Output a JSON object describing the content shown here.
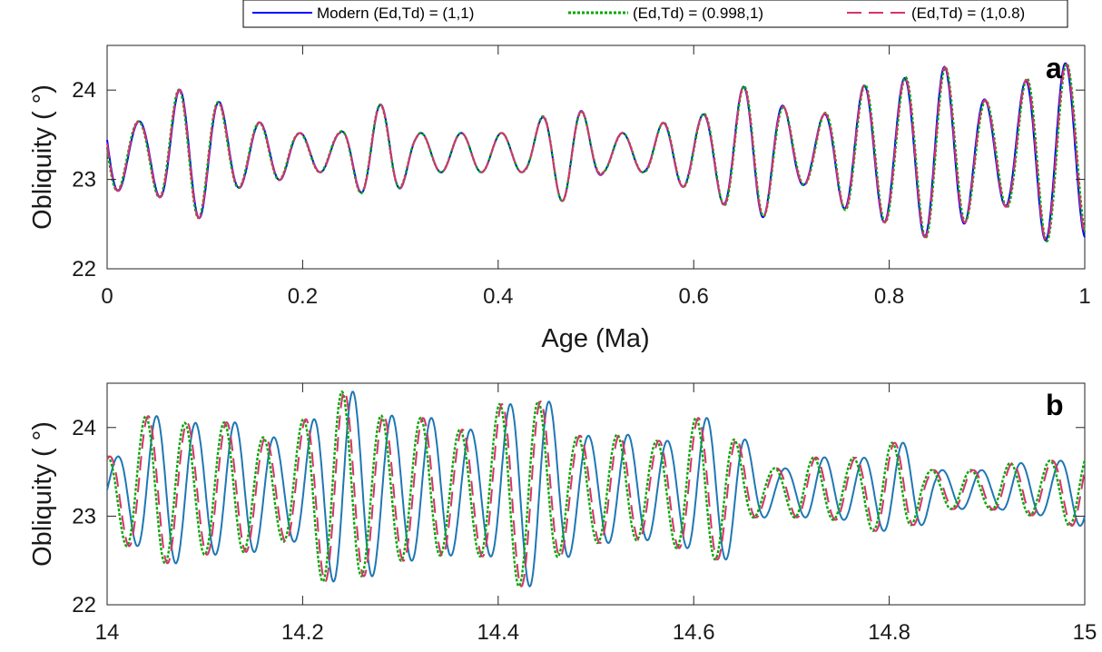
{
  "chart_data": [
    {
      "panel": "a",
      "type": "line",
      "xlabel": "Age (Ma)",
      "ylabel": "Obliquity (  °)",
      "xlim": [
        0,
        1
      ],
      "ylim": [
        22,
        24.5
      ],
      "xticks": [
        0,
        0.2,
        0.4,
        0.6,
        0.8,
        1
      ],
      "xtick_labels": [
        "0",
        "0.2",
        "0.4",
        "0.6",
        "0.8",
        "1"
      ],
      "yticks": [
        22,
        23,
        24
      ],
      "ytick_labels": [
        "22",
        "23",
        "24"
      ],
      "grid": false,
      "legend_position": "top",
      "series": [
        {
          "name": "Modern (Ed,Td) = (1,1)",
          "color": "#0000ff",
          "style": "solid",
          "period": 0.0412,
          "phase_shift": 0
        },
        {
          "name": "(Ed,Td) = (0.998,1)",
          "color": "#00aa00",
          "style": "dotted",
          "period": 0.0413,
          "phase_shift": 0.001
        },
        {
          "name": "(Ed,Td) = (1,0.8)",
          "color": "#d6336c",
          "style": "dashed",
          "period": 0.04125,
          "phase_shift": 0.0005
        }
      ]
    },
    {
      "panel": "b",
      "type": "line",
      "xlabel": "",
      "ylabel": "Obliquity (  °)",
      "xlim": [
        14,
        15
      ],
      "ylim": [
        22,
        24.5
      ],
      "xticks": [
        14,
        14.2,
        14.4,
        14.6,
        14.8,
        15
      ],
      "xtick_labels": [
        "14",
        "14.2",
        "14.4",
        "14.6",
        "14.8",
        "15"
      ],
      "yticks": [
        22,
        23,
        24
      ],
      "ytick_labels": [
        "22",
        "23",
        "24"
      ],
      "grid": false,
      "series": [
        {
          "name": "Modern (Ed,Td) = (1,1)",
          "color": "#1f77b4",
          "style": "solid",
          "period": 0.0402,
          "phase_shift": 0
        },
        {
          "name": "(Ed,Td) = (0.998,1)",
          "color": "#00aa00",
          "style": "dotted",
          "period": 0.0402,
          "phase_shift": 0.011
        },
        {
          "name": "(Ed,Td) = (1,0.8)",
          "color": "#d6336c",
          "style": "dashed",
          "period": 0.0402,
          "phase_shift": 0.0085
        }
      ]
    }
  ],
  "legend": {
    "items": [
      {
        "label": "Modern (Ed,Td) = (1,1)",
        "color": "#0000ff",
        "style": "solid"
      },
      {
        "label": "(Ed,Td) = (0.998,1)",
        "color": "#00aa00",
        "style": "dotted"
      },
      {
        "label": "(Ed,Td) = (1,0.8)",
        "color": "#d6336c",
        "style": "dashed"
      }
    ]
  }
}
